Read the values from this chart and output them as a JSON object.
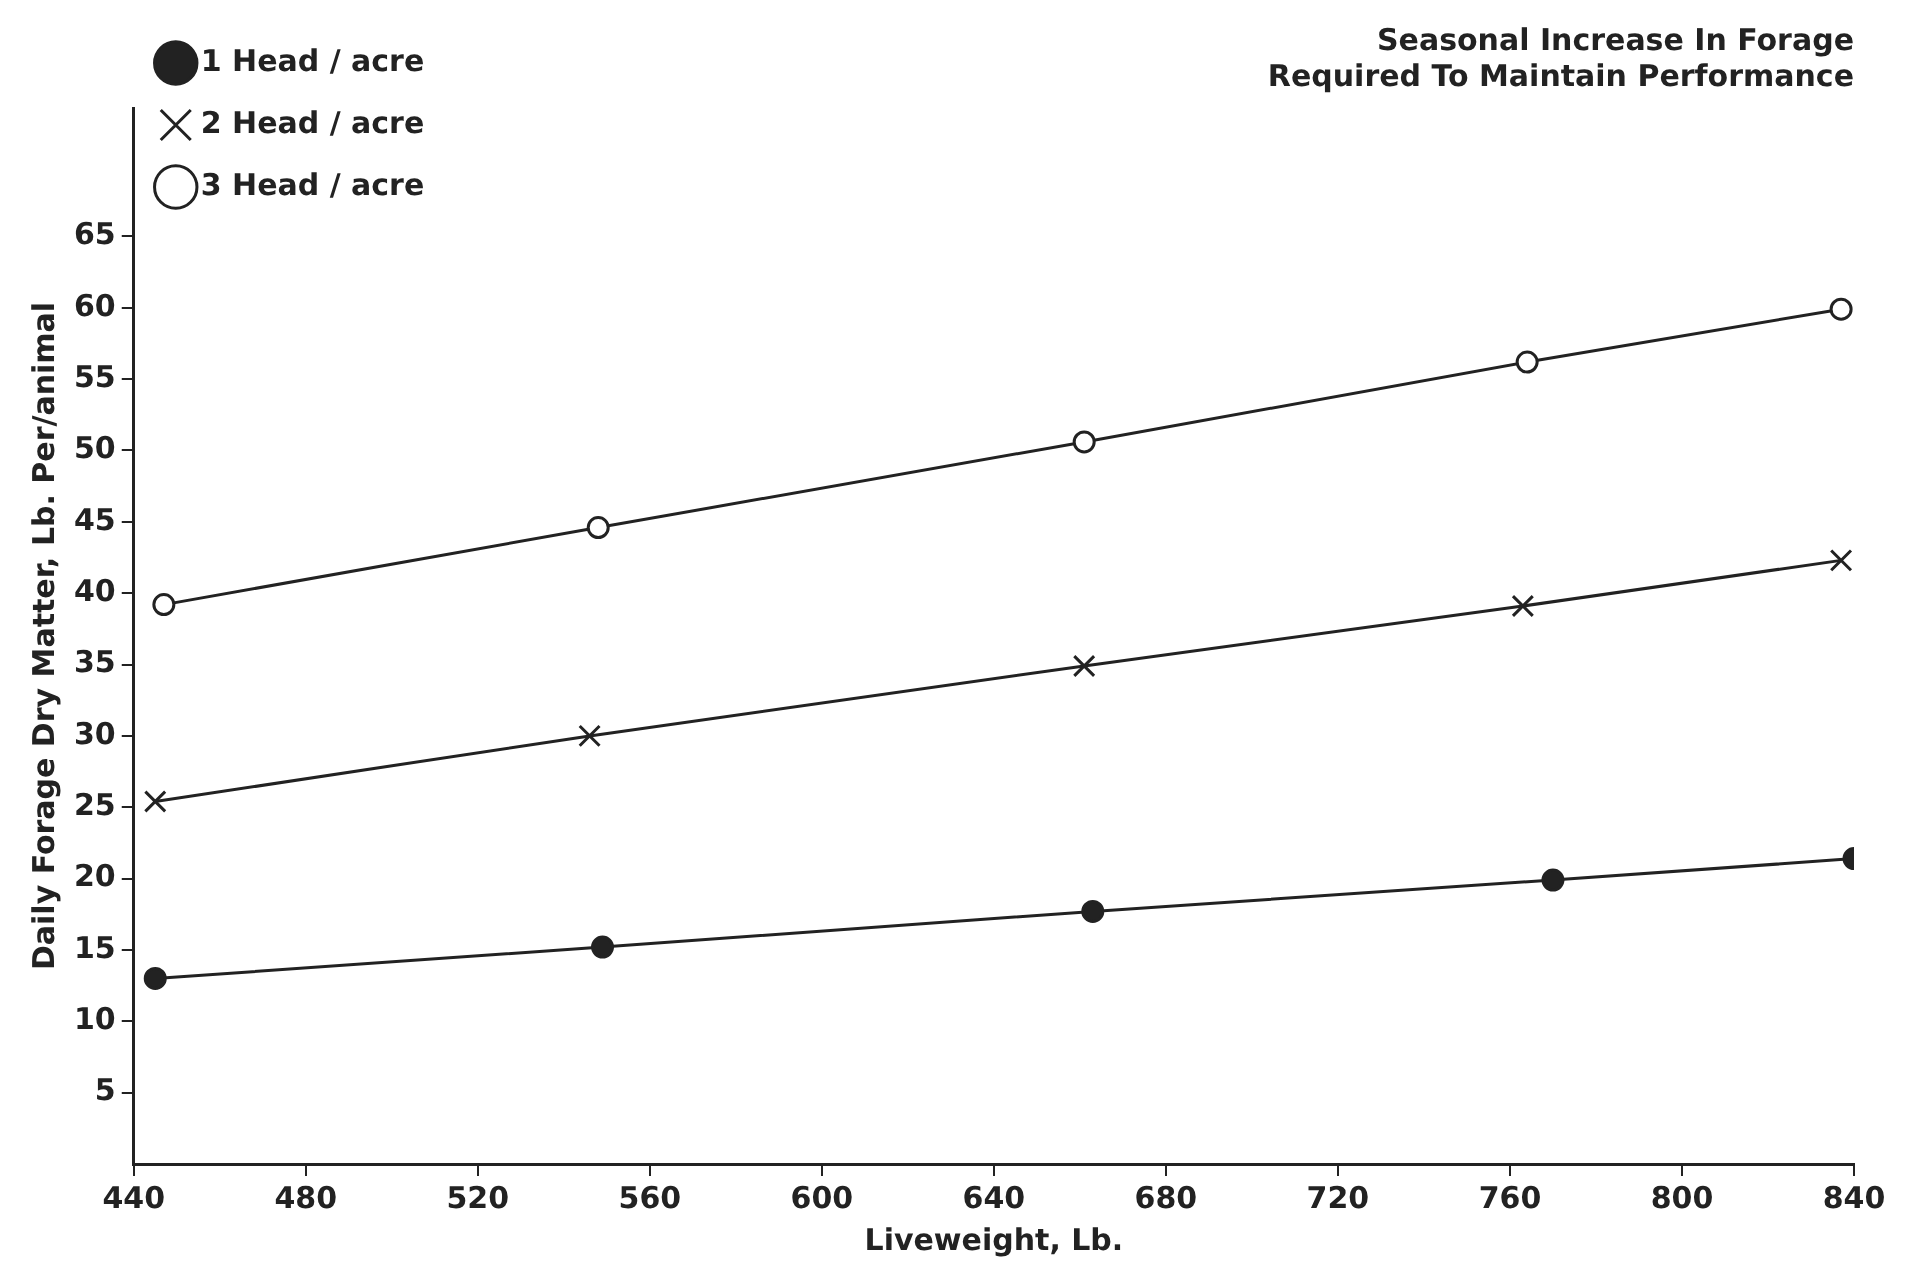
{
  "chart_data": {
    "type": "line",
    "title": [
      "Seasonal Increase In Forage",
      "Required To Maintain Performance"
    ],
    "xlabel": "Liveweight, Lb.",
    "ylabel": "Daily Forage Dry Matter, Lb. Per/animal",
    "series": [
      {
        "name": "1 Head / acre",
        "color": "#222222",
        "marker": "circle",
        "x": [
          445,
          549,
          663,
          770,
          840
        ],
        "values": [
          13,
          15.2,
          17.7,
          19.9,
          21.4
        ]
      },
      {
        "name": "2 Head / acre",
        "color": "#222222",
        "marker": "cross",
        "x": [
          445,
          546,
          661,
          763,
          837
        ],
        "values": [
          25.4,
          30.0,
          34.9,
          39.1,
          42.3
        ]
      },
      {
        "name": "3 Head / acre",
        "color": "#222222",
        "marker": "circle",
        "x": [
          447,
          548,
          661,
          764,
          837
        ],
        "values": [
          39.2,
          44.6,
          50.6,
          56.2,
          59.9
        ]
      }
    ],
    "xlim": [
      440,
      840
    ],
    "xticks": [
      440,
      480,
      520,
      560,
      600,
      640,
      680,
      720,
      760,
      800,
      840
    ],
    "ylim": [
      0,
      74
    ],
    "yticks": [
      5,
      10,
      15,
      20,
      25,
      30,
      35,
      40,
      45,
      50,
      55,
      60,
      65
    ],
    "grid": false,
    "legend": "top left",
    "line_style": "solid"
  }
}
